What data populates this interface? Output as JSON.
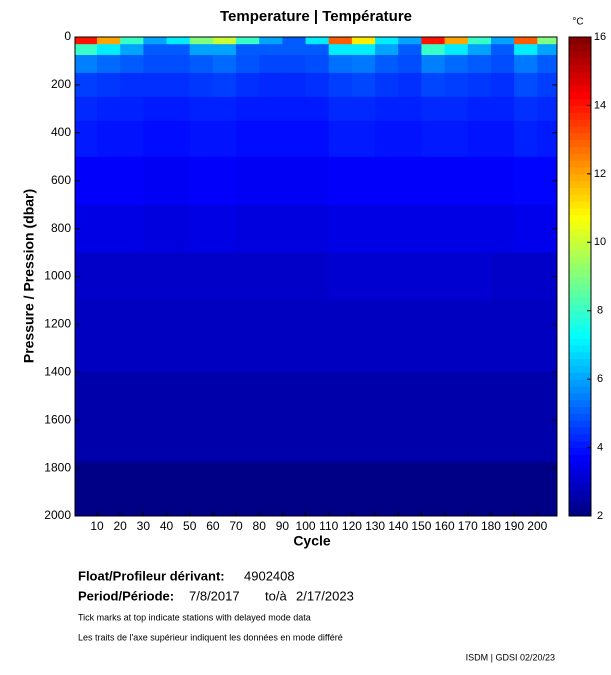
{
  "chart_data": {
    "type": "heatmap",
    "title": "Temperature | Température",
    "xlabel": "Cycle",
    "ylabel": "Pressure / Pression (dbar)",
    "colorbar_unit": "°C",
    "x": [
      5,
      15,
      25,
      35,
      45,
      55,
      65,
      75,
      85,
      95,
      105,
      115,
      125,
      135,
      145,
      155,
      165,
      175,
      185,
      195,
      205
    ],
    "y": [
      10,
      50,
      100,
      200,
      300,
      400,
      600,
      800,
      1000,
      1200,
      1600,
      1950
    ],
    "z": [
      [
        14,
        12,
        8,
        6,
        7,
        9,
        10,
        8,
        6,
        5,
        7,
        13,
        11,
        7,
        6,
        14,
        12,
        8,
        6,
        13,
        9
      ],
      [
        8,
        7,
        6,
        5,
        5,
        6,
        6,
        5,
        5,
        5,
        5,
        7,
        7,
        6,
        5,
        8,
        7,
        6,
        5,
        7,
        6
      ],
      [
        5.5,
        5.2,
        5,
        4.8,
        4.8,
        5,
        5.2,
        4.9,
        4.7,
        4.7,
        4.8,
        5.3,
        5.4,
        5,
        4.8,
        5.5,
        5.2,
        5,
        4.8,
        5.4,
        5
      ],
      [
        4.6,
        4.5,
        4.4,
        4.4,
        4.4,
        4.5,
        4.6,
        4.4,
        4.3,
        4.3,
        4.4,
        4.6,
        4.7,
        4.5,
        4.4,
        4.7,
        4.6,
        4.5,
        4.4,
        4.8,
        4.6
      ],
      [
        4.3,
        4.2,
        4.2,
        4.1,
        4.1,
        4.2,
        4.2,
        4.1,
        4.1,
        4.1,
        4.1,
        4.3,
        4.3,
        4.2,
        4.2,
        4.3,
        4.3,
        4.2,
        4.2,
        4.4,
        4.3
      ],
      [
        4.1,
        4,
        4,
        3.9,
        3.9,
        4,
        4,
        3.9,
        3.9,
        3.9,
        3.9,
        4.1,
        4.1,
        4,
        4,
        4.1,
        4.1,
        4,
        4,
        4.2,
        4.1
      ],
      [
        3.7,
        3.7,
        3.7,
        3.6,
        3.6,
        3.7,
        3.7,
        3.6,
        3.6,
        3.6,
        3.6,
        3.7,
        3.7,
        3.7,
        3.7,
        3.7,
        3.7,
        3.7,
        3.7,
        3.8,
        3.8
      ],
      [
        3.4,
        3.4,
        3.4,
        3.3,
        3.3,
        3.4,
        3.4,
        3.3,
        3.3,
        3.3,
        3.3,
        3.4,
        3.4,
        3.4,
        3.4,
        3.4,
        3.4,
        3.4,
        3.4,
        3.5,
        3.5
      ],
      [
        3,
        3,
        3,
        3,
        3,
        3,
        3,
        3,
        3,
        3,
        3,
        3.1,
        3.1,
        3.1,
        3.1,
        3.1,
        3.1,
        3.1,
        3,
        3,
        3
      ],
      [
        2.9,
        2.9,
        2.9,
        2.9,
        2.9,
        2.9,
        2.9,
        2.9,
        2.9,
        2.9,
        2.9,
        2.9,
        2.9,
        2.9,
        2.9,
        2.9,
        2.9,
        2.9,
        2.9,
        2.9,
        2.9
      ],
      [
        2.6,
        2.6,
        2.6,
        2.6,
        2.6,
        2.6,
        2.6,
        2.6,
        2.6,
        2.6,
        2.6,
        2.6,
        2.6,
        2.6,
        2.6,
        2.6,
        2.6,
        2.6,
        2.6,
        2.6,
        2.6
      ],
      [
        2.1,
        2.1,
        2.1,
        2.1,
        2.1,
        2.1,
        2.1,
        2.1,
        2.1,
        2.1,
        2.1,
        2.1,
        2.1,
        2.1,
        2.1,
        2.1,
        2.1,
        2.1,
        2.1,
        2.1,
        2.1
      ]
    ],
    "xlim": [
      0.5,
      208.5
    ],
    "xticks": [
      10,
      20,
      30,
      40,
      50,
      60,
      70,
      80,
      90,
      100,
      110,
      120,
      130,
      140,
      150,
      160,
      170,
      180,
      190,
      200
    ],
    "ylim": [
      0,
      2000
    ],
    "yticks": [
      0,
      200,
      400,
      600,
      800,
      1000,
      1200,
      1400,
      1600,
      1800,
      2000
    ],
    "y_inverted": true,
    "clim": [
      2,
      16
    ],
    "cticks": [
      2,
      4,
      6,
      8,
      10,
      12,
      14,
      16
    ],
    "colormap": "jet"
  },
  "info": {
    "float_label": "Float/Profileur dérivant:",
    "float_id": "4902408",
    "period_label": "Period/Période:",
    "start": "7/8/2017",
    "to": "to/à",
    "end": "2/17/2023",
    "note_en": "Tick marks at top indicate stations with delayed mode data",
    "note_fr": "Les traits de l'axe supérieur indiquent les données en mode différé",
    "footer": "ISDM | GDSI 02/20/23"
  }
}
